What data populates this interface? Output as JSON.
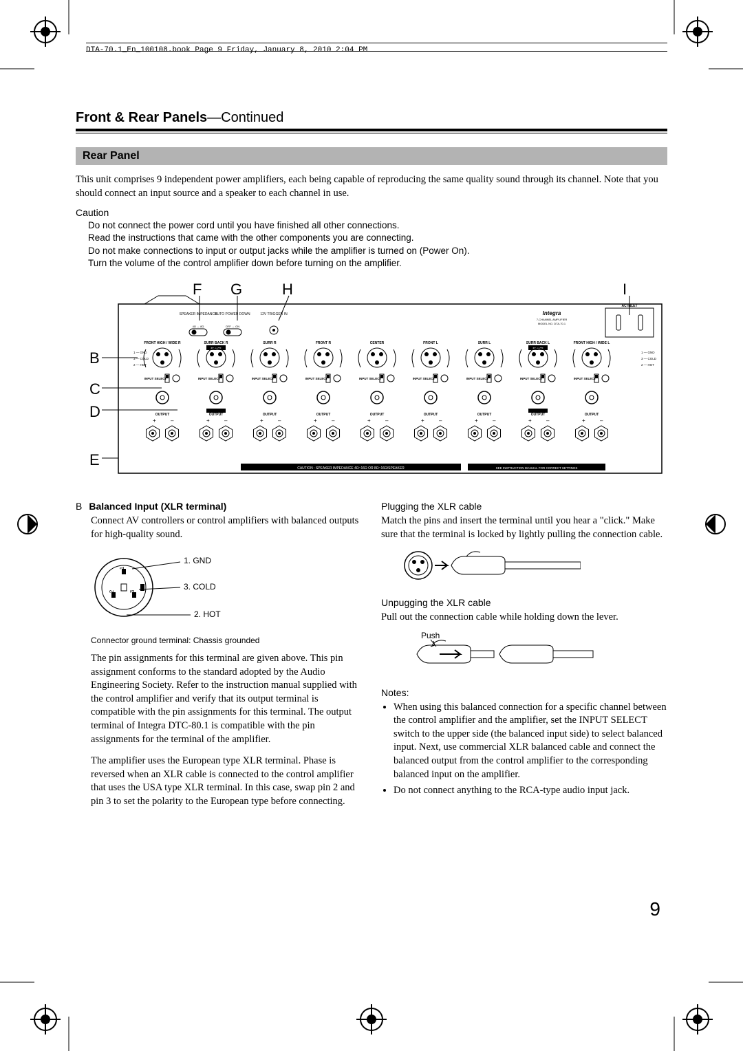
{
  "header": {
    "runningLine": "DTA-70.1_En_100108.book  Page 9  Friday, January 8, 2010  2:04 PM"
  },
  "sectionTitle": {
    "main": "Front & Rear Panels",
    "suffix": "—Continued"
  },
  "subBanner": "Rear Panel",
  "intro": "This unit comprises 9 independent power amplifiers, each being capable of reproducing the same quality sound through its channel. Note that you should connect an input source and a speaker to each channel in use.",
  "caution": {
    "label": "Caution",
    "items": [
      "Do not connect the power cord until you have finished all other connections.",
      "Read the instructions that came with the other components you are connecting.",
      "Do not make connections to input or output jacks while the amplifier is turned on (Power        On).",
      "Turn the volume of the control amplifier down before turning on the amplifier."
    ]
  },
  "diagram": {
    "callouts": [
      "B",
      "C",
      "D",
      "E",
      "F",
      "G",
      "H",
      "I"
    ],
    "panelLabels": {
      "speakerImp": "SPEAKER IMPEDANCE",
      "autoPowerDown": "AUTO POWER DOWN",
      "trigger": "12V TRIGGER IN",
      "acInlet": "AC INLET",
      "model": "MODEL NO. DTA-70.1",
      "brand": "Integra",
      "switch1": "4Ω ↔ 8Ω",
      "switch2": "OFF ↔ ON",
      "channels": [
        "FRONT HIGH / WIDE R",
        "SURR BACK R",
        "SURR R",
        "FRONT R",
        "CENTER",
        "FRONT L",
        "SURR L",
        "SURR BACK L",
        "FRONT HIGH / WIDE L"
      ],
      "biamp": "BI AMP",
      "inputSelect": "INPUT SELECT",
      "output": "OUTPUT",
      "pinsLegend": {
        "1": "GND",
        "2": "HOT",
        "3": "COLD"
      },
      "cautionBar": "CAUTION : SPEAKER IMPEDANCE  4Ω~16Ω OR 8Ω~16Ω/SPEAKER",
      "seeManual": "SEE INSTRUCTION MANUAL FOR CORRECT SETTINGS"
    }
  },
  "leftCol": {
    "letter": "B",
    "title": "Balanced Input (XLR terminal)",
    "para1": "Connect AV controllers or control amplifiers with balanced outputs for high-quality sound.",
    "xlrLabels": {
      "1": "1. GND",
      "2": "2. HOT",
      "3": "3. COLD"
    },
    "caption": "Connector ground terminal: Chassis grounded",
    "para2": "The pin assignments for this terminal are given above. This pin assignment conforms to the standard adopted by the Audio Engineering Society. Refer to the instruction manual supplied with the control amplifier and verify that its output terminal is compatible with the pin assignments for this terminal. The output terminal of Integra DTC-80.1 is compatible with the pin assignments for the terminal of the amplifier.",
    "para3": "The amplifier uses the European type XLR terminal. Phase is reversed when an XLR cable is connected to the control amplifier that uses the USA type XLR terminal. In this case, swap pin 2 and pin 3 to set the polarity to the European type before connecting."
  },
  "rightCol": {
    "plugHead": "Plugging the XLR cable",
    "plugText": "Match the pins and insert the terminal until you hear a \"click.\" Make sure that the terminal is locked by lightly pulling the connection cable.",
    "unplugHead": "Unpugging the XLR cable",
    "unplugText": "Pull out the connection cable while holding down the lever.",
    "pushLabel": "Push",
    "notesHead": "Notes:",
    "notes": [
      "When using this balanced connection for a specific channel between the control amplifier and the amplifier, set the INPUT SELECT switch to the upper side (the balanced input side) to select balanced input. Next, use commercial XLR balanced cable and connect the balanced output from the control amplifier to the corresponding balanced input on the amplifier.",
      "Do not connect anything to the RCA-type audio input jack."
    ]
  },
  "pageNumber": "9",
  "colors": {
    "bannerBg": "#b3b3b3",
    "text": "#000000",
    "bg": "#ffffff"
  }
}
